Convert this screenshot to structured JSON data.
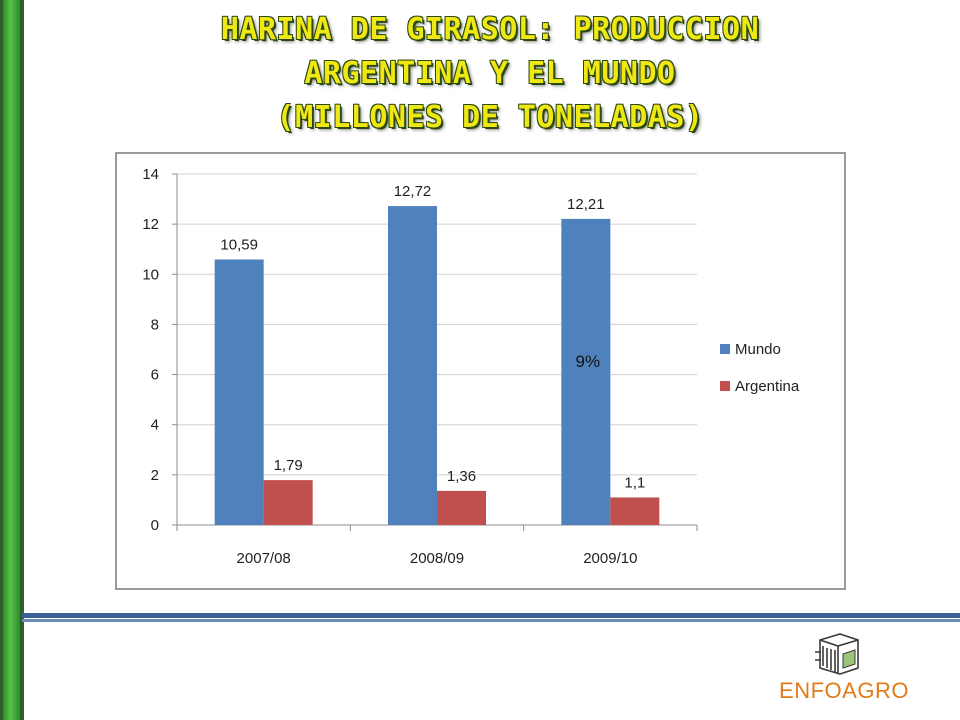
{
  "title": {
    "line1": "HARINA DE GIRASOL: PRODUCCION",
    "line2": "ARGENTINA Y EL MUNDO",
    "line3": "(MILLONES DE TONELADAS)"
  },
  "colors": {
    "mundo": "#4f81bd",
    "argentina": "#c0504d",
    "title": "#f0e814",
    "rail": "#3fa83a",
    "divider": "#3c5f98",
    "logo_text": "#e07b1a"
  },
  "chart_data": {
    "type": "bar",
    "categories": [
      "2007/08",
      "2008/09",
      "2009/10"
    ],
    "series": [
      {
        "name": "Mundo",
        "values": [
          10.59,
          12.72,
          12.21
        ],
        "labels": [
          "10,59",
          "12,72",
          "12,21"
        ]
      },
      {
        "name": "Argentina",
        "values": [
          1.79,
          1.36,
          1.1
        ],
        "labels": [
          "1,79",
          "1,36",
          "1,1"
        ]
      }
    ],
    "ylim": [
      0,
      14
    ],
    "yticks": [
      0,
      2,
      4,
      6,
      8,
      10,
      12,
      14
    ],
    "grid": true,
    "legend": "right",
    "annotation": "9%"
  },
  "logo": {
    "text": "ENFOAGRO",
    "icon": "cube-icon"
  }
}
